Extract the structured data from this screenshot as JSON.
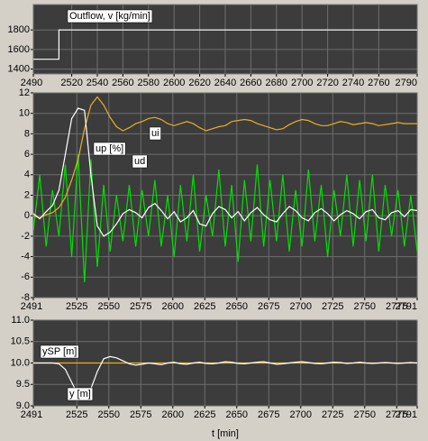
{
  "chart_data": [
    {
      "type": "line",
      "xlim": [
        2490,
        2790
      ],
      "ylim": [
        1350,
        2060
      ],
      "xticks": [
        2490,
        2520,
        2540,
        2560,
        2580,
        2600,
        2620,
        2640,
        2660,
        2680,
        2700,
        2720,
        2740,
        2760,
        2790
      ],
      "yticks": [
        1400,
        1600,
        1800
      ],
      "grid": true,
      "series": [
        {
          "name": "Outflow, v [kg/min]",
          "color": "#ffffff",
          "x": [
            2490,
            2510,
            2510,
            2790
          ],
          "values": [
            1500,
            1500,
            1800,
            1800
          ]
        }
      ]
    },
    {
      "type": "line",
      "xlim": [
        2491,
        2791
      ],
      "ylim": [
        -8,
        12
      ],
      "xticks": [
        2491,
        2525,
        2550,
        2575,
        2600,
        2625,
        2650,
        2675,
        2700,
        2725,
        2750,
        2775,
        2791
      ],
      "yticks": [
        -8,
        -6,
        -4,
        -2,
        0,
        2,
        4,
        6,
        8,
        10,
        12
      ],
      "grid": true,
      "x": [
        2491,
        2496,
        2501,
        2506,
        2511,
        2516,
        2521,
        2526,
        2531,
        2536,
        2541,
        2546,
        2551,
        2556,
        2561,
        2566,
        2571,
        2576,
        2581,
        2586,
        2591,
        2596,
        2601,
        2606,
        2611,
        2616,
        2621,
        2626,
        2631,
        2636,
        2641,
        2646,
        2651,
        2656,
        2661,
        2666,
        2671,
        2676,
        2681,
        2686,
        2691,
        2696,
        2701,
        2706,
        2711,
        2716,
        2721,
        2726,
        2731,
        2736,
        2741,
        2746,
        2751,
        2756,
        2761,
        2766,
        2771,
        2776,
        2781,
        2786,
        2791
      ],
      "series": [
        {
          "name": "ud",
          "color": "#00e000",
          "values": [
            -1.5,
            4.0,
            -3.0,
            2.5,
            -2.0,
            5.0,
            -4.0,
            6.0,
            -6.5,
            5.5,
            -5.0,
            3.0,
            -3.5,
            2.0,
            -2.5,
            3.0,
            -3.0,
            2.5,
            -2.0,
            3.5,
            -3.0,
            2.0,
            -4.0,
            3.0,
            -2.5,
            4.0,
            -3.5,
            2.0,
            -2.0,
            4.5,
            -3.0,
            3.0,
            -4.5,
            3.5,
            -2.5,
            5.0,
            -3.0,
            3.5,
            -2.5,
            4.0,
            -3.5,
            2.5,
            -3.0,
            4.5,
            -2.5,
            3.0,
            -4.0,
            2.5,
            -2.0,
            4.0,
            -3.0,
            3.5,
            -2.5,
            4.0,
            -3.5,
            3.0,
            -2.0,
            2.5,
            -3.0,
            2.0,
            -3.5
          ]
        },
        {
          "name": "ui",
          "color": "#e8b020",
          "values": [
            0.0,
            -0.2,
            0.1,
            0.3,
            0.8,
            1.8,
            3.5,
            5.5,
            8.5,
            10.8,
            11.6,
            10.8,
            9.6,
            8.7,
            8.3,
            8.6,
            9.0,
            9.2,
            9.5,
            9.6,
            9.4,
            9.0,
            8.8,
            9.0,
            9.2,
            9.0,
            8.6,
            8.3,
            8.5,
            8.7,
            8.8,
            9.2,
            9.3,
            9.4,
            9.3,
            9.0,
            8.8,
            8.6,
            8.4,
            8.5,
            8.9,
            9.2,
            9.4,
            9.3,
            9.0,
            8.8,
            8.8,
            9.0,
            9.2,
            9.1,
            8.9,
            9.0,
            9.1,
            9.0,
            8.8,
            8.9,
            9.0,
            9.1,
            9.0,
            9.0,
            9.0
          ]
        },
        {
          "name": "up [%]",
          "color": "#ffffff",
          "values": [
            0.2,
            -0.3,
            0.4,
            1.0,
            2.5,
            6.0,
            9.5,
            10.5,
            10.3,
            4.0,
            -1.0,
            -2.0,
            -1.6,
            -0.8,
            0.2,
            0.6,
            0.3,
            -0.2,
            0.8,
            1.2,
            0.5,
            -0.3,
            0.4,
            -0.6,
            -0.2,
            0.5,
            -0.8,
            -1.0,
            0.2,
            0.9,
            0.6,
            -0.2,
            0.4,
            -0.5,
            0.3,
            0.8,
            0.1,
            -0.4,
            -0.6,
            0.2,
            0.9,
            0.5,
            -0.2,
            -0.5,
            0.3,
            0.7,
            0.2,
            -0.5,
            0.1,
            0.5,
            0.2,
            -0.3,
            0.4,
            0.6,
            -0.2,
            -0.4,
            0.3,
            0.5,
            -0.1,
            0.6,
            0.5
          ]
        }
      ]
    },
    {
      "type": "line",
      "xlim": [
        2491,
        2791
      ],
      "ylim": [
        9,
        11
      ],
      "xlabel": "t [min]",
      "xticks": [
        2491,
        2525,
        2550,
        2575,
        2600,
        2625,
        2650,
        2675,
        2700,
        2725,
        2750,
        2775,
        2791
      ],
      "yticks": [
        {
          "value": 9,
          "label": "9.0"
        },
        9.5,
        {
          "value": 10,
          "label": "10.0"
        },
        10.5,
        {
          "value": 11,
          "label": "11.0"
        }
      ],
      "grid": true,
      "x": [
        2491,
        2496,
        2501,
        2506,
        2511,
        2516,
        2521,
        2526,
        2531,
        2536,
        2541,
        2546,
        2551,
        2556,
        2561,
        2566,
        2571,
        2576,
        2581,
        2586,
        2591,
        2596,
        2601,
        2606,
        2611,
        2616,
        2621,
        2626,
        2631,
        2636,
        2641,
        2646,
        2651,
        2656,
        2661,
        2666,
        2671,
        2676,
        2681,
        2686,
        2691,
        2696,
        2701,
        2706,
        2711,
        2716,
        2721,
        2726,
        2731,
        2736,
        2741,
        2746,
        2751,
        2756,
        2761,
        2766,
        2771,
        2776,
        2781,
        2786,
        2791
      ],
      "series": [
        {
          "name": "ySP [m]",
          "color": "#e8b020",
          "x": [
            2491,
            2791
          ],
          "values": [
            10,
            10
          ]
        },
        {
          "name": "y [m]",
          "color": "#ffffff",
          "values": [
            10.0,
            10.0,
            10.0,
            10.0,
            9.98,
            9.85,
            9.55,
            9.25,
            9.2,
            9.4,
            9.8,
            10.1,
            10.15,
            10.12,
            10.05,
            9.98,
            9.95,
            9.97,
            10.0,
            9.98,
            9.96,
            10.0,
            10.02,
            9.98,
            9.97,
            10.0,
            10.02,
            9.99,
            9.98,
            10.0,
            10.03,
            10.02,
            9.99,
            9.98,
            10.0,
            10.02,
            10.03,
            10.0,
            9.97,
            9.98,
            10.0,
            10.02,
            10.03,
            10.01,
            9.99,
            9.98,
            10.0,
            10.02,
            10.01,
            9.99,
            10.0,
            10.02,
            10.0,
            9.99,
            10.0,
            10.01,
            10.0,
            9.99,
            10.0,
            10.01,
            10.0
          ]
        }
      ]
    }
  ]
}
